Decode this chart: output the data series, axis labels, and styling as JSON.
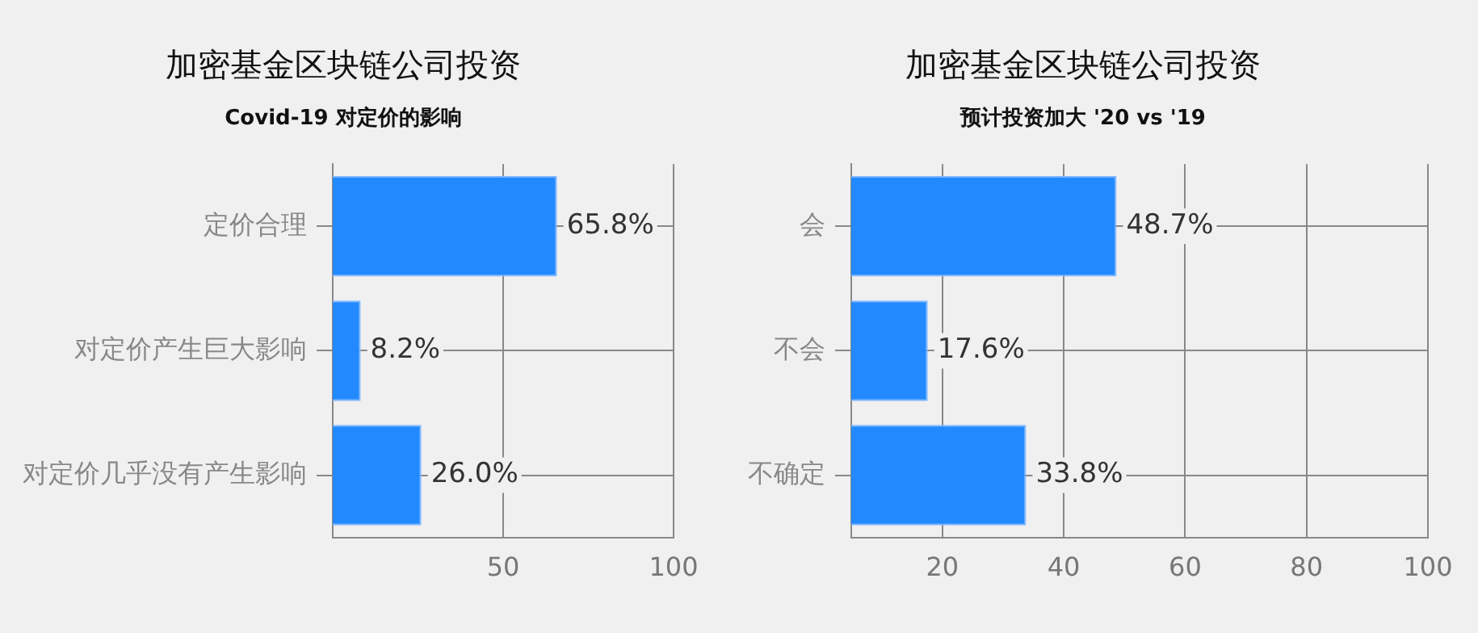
{
  "chart_data": [
    {
      "type": "bar",
      "orientation": "horizontal",
      "title": "加密基金区块链公司投资",
      "subtitle": "Covid-19 对定价的影响",
      "categories": [
        "定价合理",
        "对定价产生巨大影响",
        "对定价几乎没有产生影响"
      ],
      "values": [
        65.8,
        8.2,
        26.0
      ],
      "value_labels": [
        "65.8%",
        "8.2%",
        "26.0%"
      ],
      "color": "#2389ff",
      "xlim": [
        0,
        100
      ],
      "xticks": [
        50,
        100
      ],
      "grid": true,
      "legend": false
    },
    {
      "type": "bar",
      "orientation": "horizontal",
      "title": "加密基金区块链公司投资",
      "subtitle": "预计投资加大 '20 vs '19",
      "categories": [
        "会",
        "不会",
        "不确定"
      ],
      "values": [
        48.7,
        17.6,
        33.8
      ],
      "value_labels": [
        "48.7%",
        "17.6%",
        "33.8%"
      ],
      "color": "#2389ff",
      "xlim": [
        5,
        100
      ],
      "xticks": [
        20,
        40,
        60,
        80,
        100
      ],
      "grid": true,
      "legend": false
    }
  ]
}
